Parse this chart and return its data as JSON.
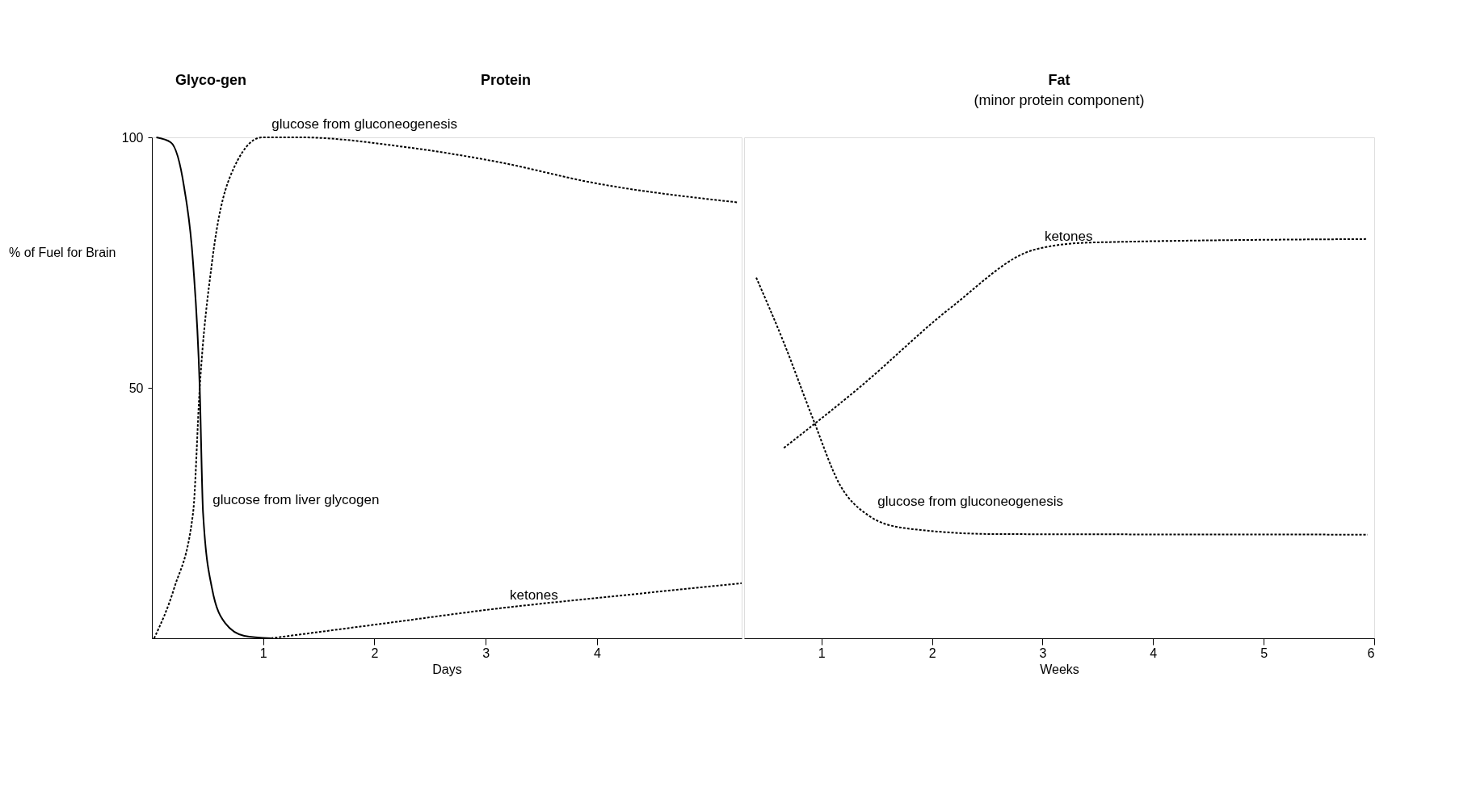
{
  "chart_data": [
    {
      "type": "line",
      "xlabel": "Days",
      "ylabel": "% of Fuel for Brain",
      "xlim": [
        0,
        5.3
      ],
      "xticks": [
        1,
        2,
        3,
        4
      ],
      "ylim": [
        0,
        100
      ],
      "yticks": [
        50,
        100
      ],
      "grid": false,
      "annotations": [
        "Glyco-gen",
        "Protein"
      ],
      "series": [
        {
          "name": "glucose from liver glycogen",
          "color": "#000000",
          "line_style": "solid",
          "x": [
            0.04,
            0.17,
            0.29,
            0.37,
            0.43,
            0.46,
            0.54,
            0.66,
            0.83,
            1.07
          ],
          "values": [
            100,
            99,
            90,
            75,
            50,
            25,
            10,
            3,
            0.5,
            0
          ]
        },
        {
          "name": "glucose from gluconeogenesis",
          "color": "#000000",
          "line_style": "dotted",
          "x": [
            0.02,
            0.2,
            0.37,
            0.43,
            0.54,
            0.7,
            0.99,
            1.32,
            2.3,
            3.13,
            3.95,
            5.27
          ],
          "values": [
            0,
            10,
            25,
            50,
            75,
            92,
            100,
            100,
            98,
            95,
            91,
            87
          ]
        },
        {
          "name": "ketones",
          "color": "#000000",
          "line_style": "dotted",
          "x": [
            1.07,
            2.1,
            3.13,
            4.2,
            5.3
          ],
          "values": [
            0,
            3,
            6,
            8.5,
            11
          ]
        }
      ]
    },
    {
      "type": "line",
      "xlabel": "Weeks",
      "xlim": [
        0.3,
        6
      ],
      "xticks": [
        1,
        2,
        3,
        4,
        5,
        6
      ],
      "ylim": [
        0,
        100
      ],
      "grid": false,
      "tick_labels": "x",
      "annotations": [
        "Fat",
        "(minor protein component)"
      ],
      "series": [
        {
          "name": "glucose from gluconeogenesis",
          "color": "#000000",
          "line_style": "dotted",
          "x": [
            0.41,
            0.66,
            0.92,
            1.17,
            1.42,
            1.75,
            2.59,
            5.94
          ],
          "values": [
            72,
            59,
            44,
            30.5,
            24.6,
            22,
            20.8,
            20.7
          ]
        },
        {
          "name": "ketones",
          "color": "#000000",
          "line_style": "dotted",
          "x": [
            0.66,
            1.34,
            2.17,
            2.93,
            3.43,
            5.94
          ],
          "values": [
            38,
            50,
            66,
            77.6,
            79,
            79.7
          ]
        }
      ]
    }
  ]
}
